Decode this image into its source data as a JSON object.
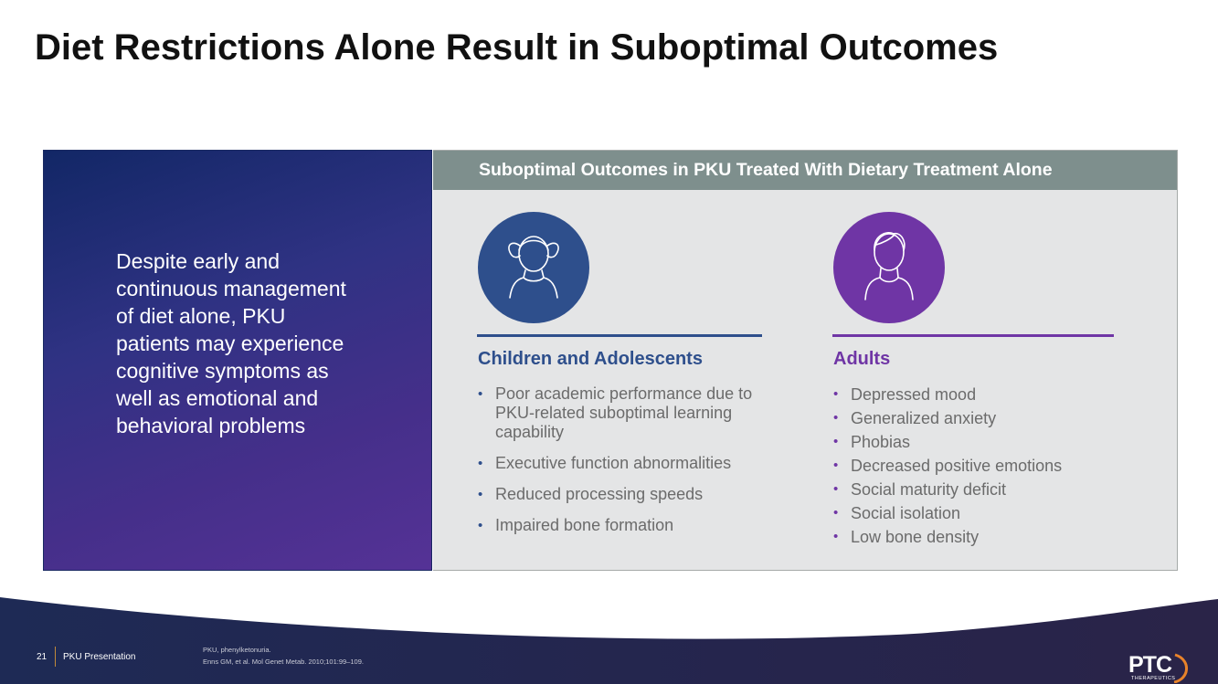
{
  "title": "Diet Restrictions Alone Result in Suboptimal Outcomes",
  "left_panel": {
    "text": "Despite early and continuous management of diet alone, PKU patients may experience cognitive symptoms as well as emotional and behavioral problems"
  },
  "right_panel": {
    "header": "Suboptimal Outcomes in PKU Treated With Dietary Treatment Alone",
    "columns": [
      {
        "title": "Children and Adolescents",
        "icon": "child-icon",
        "color": "#2e4f8c",
        "bullets": [
          "Poor academic performance due to PKU-related suboptimal learning capability",
          "Executive function abnormalities",
          "Reduced processing speeds",
          "Impaired bone formation"
        ]
      },
      {
        "title": "Adults",
        "icon": "adult-icon",
        "color": "#6f35a5",
        "bullets": [
          "Depressed mood",
          "Generalized anxiety",
          "Phobias",
          "Decreased positive emotions",
          "Social maturity deficit",
          "Social isolation",
          "Low bone density"
        ]
      }
    ]
  },
  "footer": {
    "page_number": "21",
    "label": "PKU Presentation",
    "references": [
      "PKU, phenylketonuria.",
      "Enns GM, et al. Mol Genet Metab. 2010;101:99–109."
    ],
    "logo": "PTC",
    "logo_sub": "THERAPEUTICS"
  }
}
